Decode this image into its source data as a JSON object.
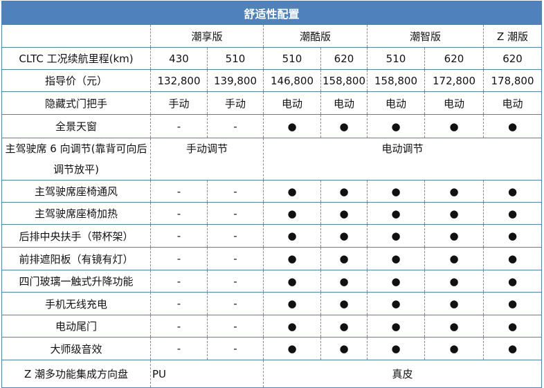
{
  "title": "舒适性配置",
  "versions": [
    "潮享版",
    "潮酷版",
    "潮智版",
    "Z 潮版"
  ],
  "range": {
    "label": "CLTC 工况续航里程(km)",
    "values": [
      "430",
      "510",
      "510",
      "620",
      "510",
      "620",
      "620"
    ]
  },
  "price": {
    "label": "指导价（元）",
    "values": [
      "132,800",
      "139,800",
      "146,800",
      "158,800",
      "158,800",
      "172,800",
      "178,800"
    ]
  },
  "door_handle": {
    "label": "隐藏式门把手",
    "values": [
      "手动",
      "手动",
      "电动",
      "电动",
      "电动",
      "电动",
      "电动"
    ]
  },
  "sunroof": {
    "label": "全景天窗",
    "values": [
      "-",
      "-",
      "●",
      "●",
      "●",
      "●",
      "●"
    ]
  },
  "seat_adjust": {
    "label": "主驾驶席 6 向调节(靠背可向后调节放平)",
    "values": [
      "手动调节",
      "电动调节"
    ]
  },
  "feature_rows": [
    {
      "label": "主驾驶席座椅通风",
      "values": [
        "-",
        "-",
        "●",
        "●",
        "●",
        "●",
        "●"
      ]
    },
    {
      "label": "主驾驶席座椅加热",
      "values": [
        "-",
        "-",
        "●",
        "●",
        "●",
        "●",
        "●"
      ]
    },
    {
      "label": "后排中央扶手（带杯架）",
      "values": [
        "-",
        "-",
        "●",
        "●",
        "●",
        "●",
        "●"
      ]
    },
    {
      "label": "前排遮阳板（有镜有灯）",
      "values": [
        "-",
        "-",
        "●",
        "●",
        "●",
        "●",
        "●"
      ]
    },
    {
      "label": "四门玻璃一触式升降功能",
      "values": [
        "-",
        "-",
        "●",
        "●",
        "●",
        "●",
        "●"
      ]
    },
    {
      "label": "手机无线充电",
      "values": [
        "-",
        "-",
        "●",
        "●",
        "●",
        "●",
        "●"
      ]
    },
    {
      "label": "电动尾门",
      "values": [
        "-",
        "-",
        "●",
        "●",
        "●",
        "●",
        "●"
      ]
    },
    {
      "label": "大师级音效",
      "values": [
        "-",
        "-",
        "●",
        "●",
        "●",
        "●",
        "●"
      ]
    }
  ],
  "steering": {
    "label": "Z 潮多功能集成方向盘",
    "values": [
      "PU",
      "真皮"
    ]
  },
  "colors": {
    "header_bg": "#4f81bd",
    "border": "#4f81bd"
  }
}
